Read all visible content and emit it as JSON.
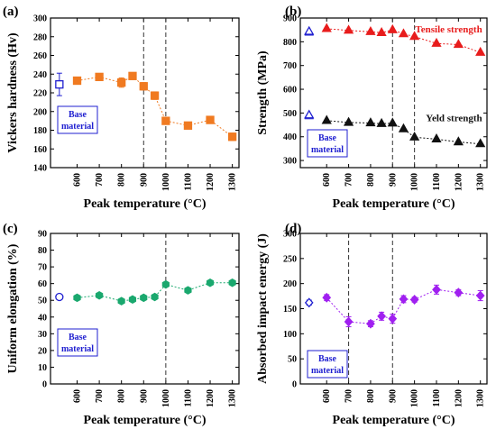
{
  "chart_data": [
    {
      "panel": "(a)",
      "type": "line",
      "xlabel": "Peak temperature (°C)",
      "ylabel": "Vickers hardness (Hv)",
      "xlim": [
        480,
        1330
      ],
      "ylim": [
        140,
        300
      ],
      "xticks": [
        600,
        700,
        800,
        900,
        1000,
        1100,
        1200,
        1300
      ],
      "yticks": [
        140,
        160,
        180,
        200,
        220,
        240,
        260,
        280,
        300
      ],
      "color": "#f07a21",
      "marker": "square",
      "x": [
        600,
        700,
        800,
        850,
        900,
        950,
        1000,
        1100,
        1200,
        1300
      ],
      "y": [
        233,
        237,
        231,
        238,
        227,
        217,
        190,
        185,
        191,
        173
      ],
      "err": [
        3,
        3,
        5,
        3,
        4,
        4,
        3,
        2,
        3,
        4
      ],
      "base": {
        "value": 229,
        "err": 12,
        "label": [
          "Base",
          "material"
        ]
      },
      "dashed_lines": [
        900,
        1000
      ],
      "annotations": []
    },
    {
      "panel": "(b)",
      "type": "line",
      "xlabel": "Peak temperature (°C)",
      "ylabel": "Strength (MPa)",
      "xlim": [
        480,
        1330
      ],
      "ylim": [
        270,
        900
      ],
      "xticks": [
        600,
        700,
        800,
        900,
        1000,
        1100,
        1200,
        1300
      ],
      "yticks": [
        300,
        400,
        500,
        600,
        700,
        800,
        900
      ],
      "marker": "triangle",
      "base": {
        "label": [
          "Base",
          "material"
        ]
      },
      "dashed_lines": [
        900,
        1000
      ],
      "series": [
        {
          "name": "Tensile strength",
          "color": "#e81c1c",
          "x": [
            600,
            700,
            800,
            850,
            900,
            950,
            1000,
            1100,
            1200,
            1300
          ],
          "y": [
            855,
            848,
            842,
            838,
            850,
            833,
            822,
            793,
            788,
            755
          ],
          "base": 843
        },
        {
          "name": "Yeld strength",
          "color": "#111111",
          "x": [
            600,
            700,
            800,
            850,
            900,
            950,
            1000,
            1100,
            1200,
            1300
          ],
          "y": [
            468,
            460,
            458,
            455,
            457,
            433,
            398,
            390,
            378,
            370
          ],
          "base": 491
        }
      ]
    },
    {
      "panel": "(c)",
      "type": "line",
      "xlabel": "Peak temperature (°C)",
      "ylabel": "Uniform elongation (%)",
      "xlim": [
        480,
        1330
      ],
      "ylim": [
        0,
        90
      ],
      "xticks": [
        600,
        700,
        800,
        900,
        1000,
        1100,
        1200,
        1300
      ],
      "yticks": [
        0,
        10,
        20,
        30,
        40,
        50,
        60,
        70,
        80,
        90
      ],
      "color": "#1aa86e",
      "marker": "hexagon",
      "x": [
        600,
        700,
        800,
        850,
        900,
        950,
        1000,
        1100,
        1200,
        1300
      ],
      "y": [
        51.5,
        53,
        49.5,
        50.5,
        51.5,
        52,
        59.5,
        56,
        60.5,
        60.5
      ],
      "err": [
        1,
        1,
        0.8,
        0.8,
        0.8,
        0.8,
        1,
        0.8,
        0.8,
        0.8
      ],
      "base": {
        "value": 52,
        "label": [
          "Base",
          "material"
        ]
      },
      "dashed_lines": [
        1000
      ]
    },
    {
      "panel": "(d)",
      "type": "line",
      "xlabel": "Peak temperature (°C)",
      "ylabel": "Absorbed impact energy (J)",
      "xlim": [
        480,
        1330
      ],
      "ylim": [
        0,
        300
      ],
      "xticks": [
        600,
        700,
        800,
        900,
        1000,
        1100,
        1200,
        1300
      ],
      "yticks": [
        0,
        50,
        100,
        150,
        200,
        250,
        300
      ],
      "color": "#a020f0",
      "marker": "diamond",
      "x": [
        600,
        700,
        800,
        850,
        900,
        950,
        1000,
        1100,
        1200,
        1300
      ],
      "y": [
        172,
        124,
        120,
        135,
        130,
        169,
        168,
        188,
        182,
        176
      ],
      "err": [
        6,
        10,
        6,
        8,
        9,
        7,
        5,
        9,
        6,
        10
      ],
      "base": {
        "value": 162,
        "err": 5,
        "label": [
          "Base",
          "material"
        ]
      },
      "dashed_lines": [
        700,
        900
      ]
    }
  ]
}
